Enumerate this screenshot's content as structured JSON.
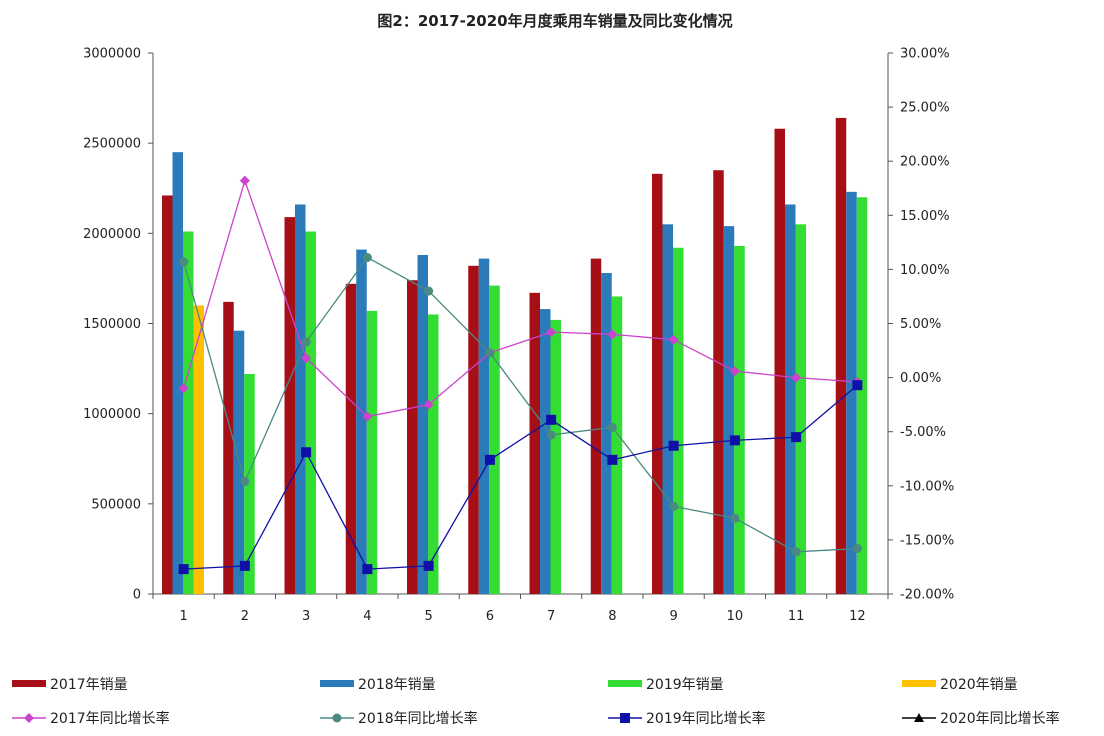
{
  "chart_data": {
    "type": "bar",
    "title": "图2：2017-2020年月度乘用车销量及同比变化情况",
    "categories": [
      "1",
      "2",
      "3",
      "4",
      "5",
      "6",
      "7",
      "8",
      "9",
      "10",
      "11",
      "12"
    ],
    "y_left": {
      "ylim": [
        0,
        3000000
      ],
      "ticks": [
        "3000000",
        "2500000",
        "2000000",
        "1500000",
        "1000000",
        "500000",
        "0"
      ]
    },
    "y_right": {
      "ylim": [
        -20,
        30
      ],
      "ticks": [
        "30.00%",
        "25.00%",
        "20.00%",
        "15.00%",
        "10.00%",
        "5.00%",
        "0.00%",
        "-5.00%",
        "-10.00%",
        "-15.00%",
        "-20.00%"
      ]
    },
    "bar_series": [
      {
        "name": "2017年销量",
        "color": "#a50f15",
        "values": [
          2210000,
          1620000,
          2090000,
          1720000,
          1740000,
          1820000,
          1670000,
          1860000,
          2330000,
          2350000,
          2580000,
          2640000
        ]
      },
      {
        "name": "2018年销量",
        "color": "#2b7bba",
        "values": [
          2450000,
          1460000,
          2160000,
          1910000,
          1880000,
          1860000,
          1580000,
          1780000,
          2050000,
          2040000,
          2160000,
          2230000
        ]
      },
      {
        "name": "2019年销量",
        "color": "#33dd33",
        "values": [
          2010000,
          1220000,
          2010000,
          1570000,
          1550000,
          1710000,
          1520000,
          1650000,
          1920000,
          1930000,
          2050000,
          2200000
        ]
      },
      {
        "name": "2020年销量",
        "color": "#ffc000",
        "values": [
          1600000,
          null,
          null,
          null,
          null,
          null,
          null,
          null,
          null,
          null,
          null,
          null
        ]
      }
    ],
    "line_series": [
      {
        "name": "2017年同比增长率",
        "color": "#cc44cc",
        "marker": "diamond",
        "values": [
          -1.0,
          18.2,
          1.8,
          -3.6,
          -2.5,
          2.3,
          4.2,
          4.0,
          3.5,
          0.6,
          0.0,
          -0.4
        ]
      },
      {
        "name": "2018年同比增长率",
        "color": "#4a8a80",
        "marker": "circle",
        "values": [
          10.7,
          -9.6,
          3.3,
          11.1,
          8.0,
          2.3,
          -5.3,
          -4.6,
          -11.9,
          -13.0,
          -16.1,
          -15.8
        ]
      },
      {
        "name": "2019年同比增长率",
        "color": "#1010a8",
        "marker": "square",
        "values": [
          -17.7,
          -17.4,
          -6.9,
          -17.7,
          -17.4,
          -7.6,
          -3.9,
          -7.6,
          -6.3,
          -5.8,
          -5.5,
          -0.7
        ]
      },
      {
        "name": "2020年同比增长率",
        "color": "#000000",
        "marker": "triangle",
        "values": [
          null,
          null,
          null,
          null,
          null,
          null,
          null,
          null,
          null,
          null,
          null,
          null
        ]
      }
    ],
    "legend_position": "bottom",
    "grid": false
  }
}
